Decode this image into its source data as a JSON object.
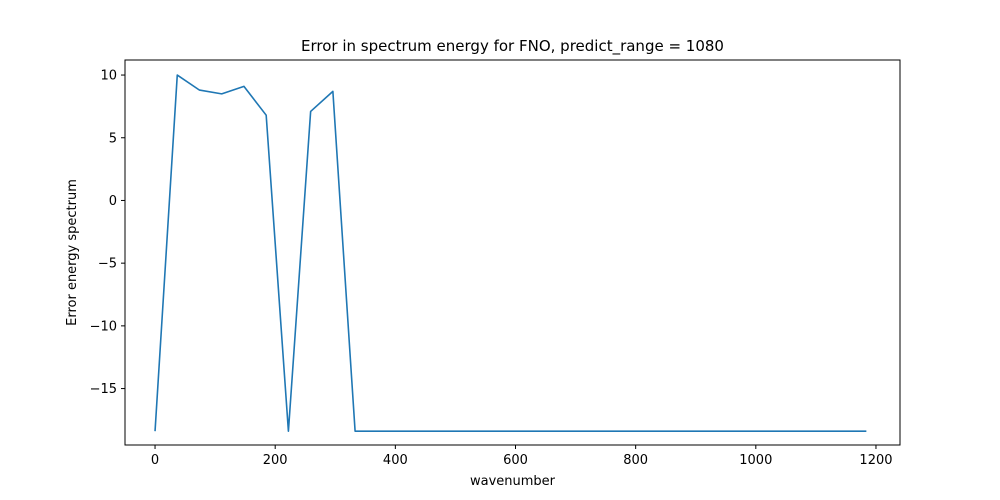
{
  "chart_data": {
    "type": "line",
    "title": "Error in spectrum energy for FNO, predict_range = 1080",
    "xlabel": "wavenumber",
    "ylabel": "Error energy spectrum",
    "xlim": [
      -50,
      1240
    ],
    "ylim": [
      -19.5,
      11.2
    ],
    "xticks": [
      0,
      200,
      400,
      600,
      800,
      1000,
      1200
    ],
    "yticks": [
      10,
      5,
      0,
      -5,
      -10,
      -15
    ],
    "ytick_labels": [
      "10",
      "5",
      "0",
      "−5",
      "−10",
      "−15"
    ],
    "grid": false,
    "line_color": "#1f77b4",
    "series": [
      {
        "x": [
          0,
          37,
          74,
          111,
          148,
          185,
          222,
          259,
          296,
          333,
          370,
          407,
          444,
          481,
          518,
          555,
          592,
          629,
          666,
          703,
          740,
          777,
          814,
          851,
          888,
          925,
          962,
          999,
          1036,
          1073,
          1110,
          1147,
          1184
        ],
        "values": [
          -18.4,
          10.0,
          8.8,
          8.5,
          9.1,
          6.8,
          -18.4,
          7.1,
          8.7,
          -18.4,
          -18.4,
          -18.4,
          -18.4,
          -18.4,
          -18.4,
          -18.4,
          -18.4,
          -18.4,
          -18.4,
          -18.4,
          -18.4,
          -18.4,
          -18.4,
          -18.4,
          -18.4,
          -18.4,
          -18.4,
          -18.4,
          -18.4,
          -18.4,
          -18.4,
          -18.4,
          -18.4
        ]
      }
    ]
  }
}
